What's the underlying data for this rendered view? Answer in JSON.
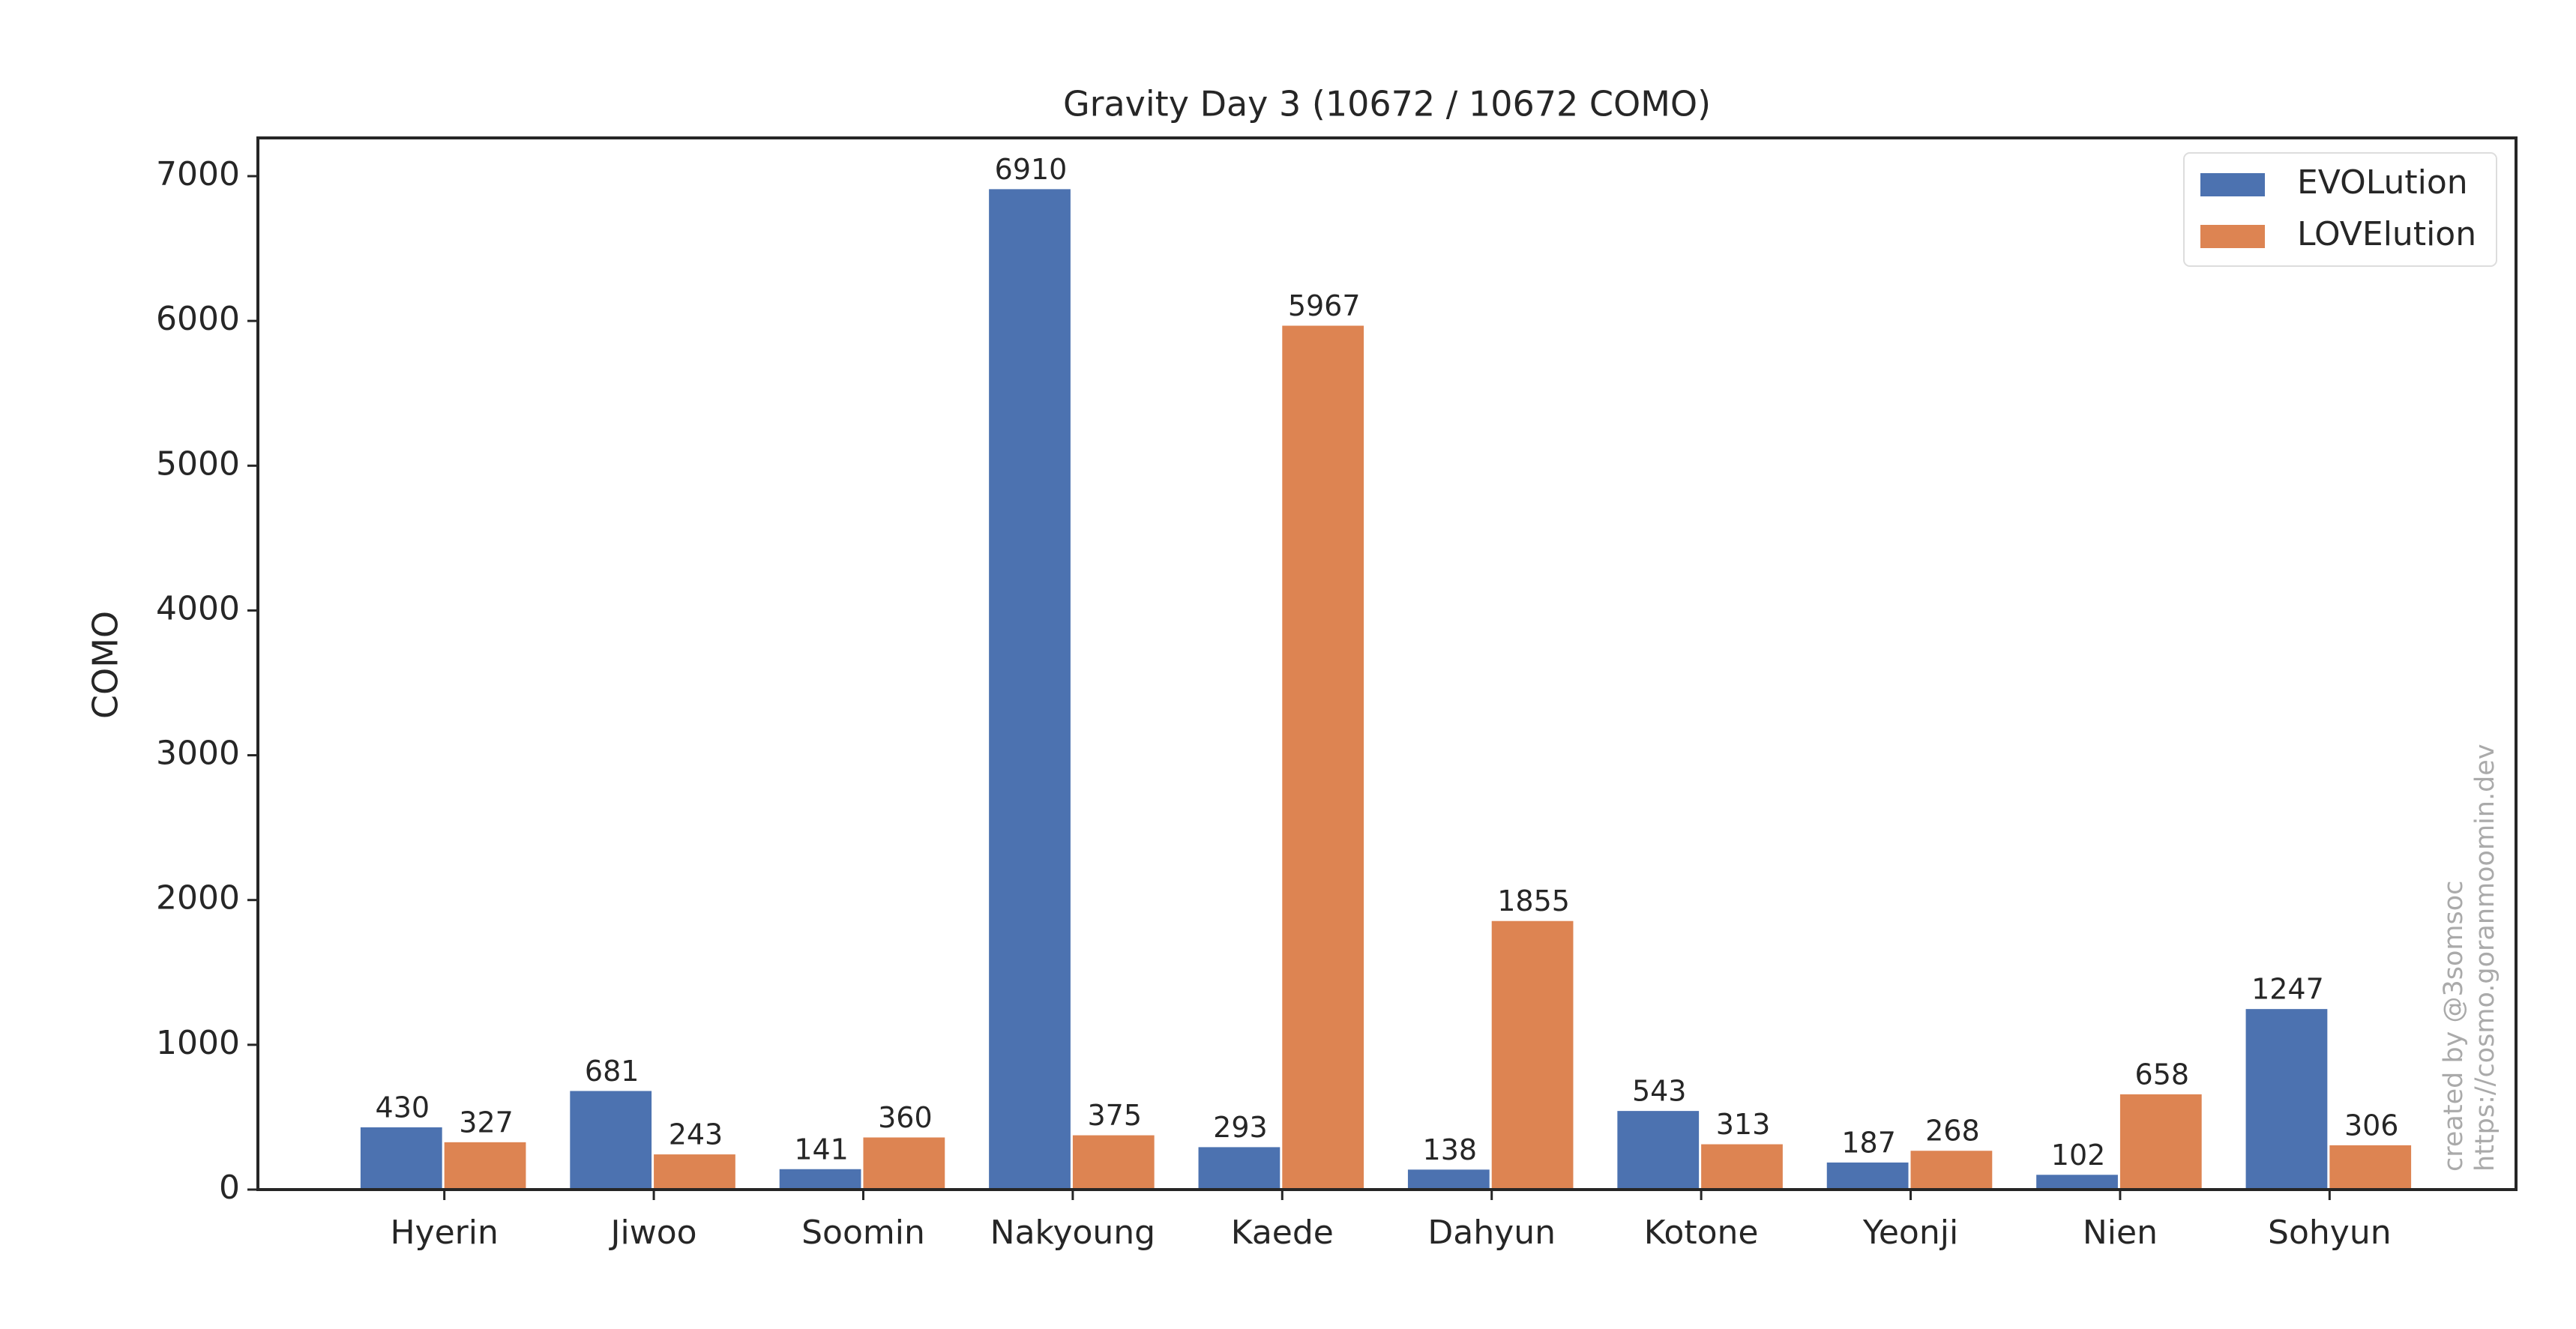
{
  "chart_data": {
    "type": "bar",
    "title": "Gravity Day 3 (10672 / 10672 COMO)",
    "y_label": "COMO",
    "categories": [
      "Hyerin",
      "Jiwoo",
      "Soomin",
      "Nakyoung",
      "Kaede",
      "Dahyun",
      "Kotone",
      "Yeonji",
      "Nien",
      "Sohyun"
    ],
    "series": [
      {
        "name": "EVOLution",
        "color": "#4c72b0",
        "values": [
          430,
          681,
          141,
          6910,
          293,
          138,
          543,
          187,
          102,
          1247
        ]
      },
      {
        "name": "LOVElution",
        "color": "#dd8452",
        "values": [
          327,
          243,
          360,
          375,
          5967,
          1855,
          313,
          268,
          658,
          306
        ]
      }
    ],
    "ylim": [
      0,
      7264
    ],
    "yticks": [
      0,
      1000,
      2000,
      3000,
      4000,
      5000,
      6000,
      7000
    ],
    "grid": false,
    "legend": "upper right",
    "annotations": [
      "created by @3somsoc",
      "https://cosmo.goranmoomin.dev"
    ]
  }
}
